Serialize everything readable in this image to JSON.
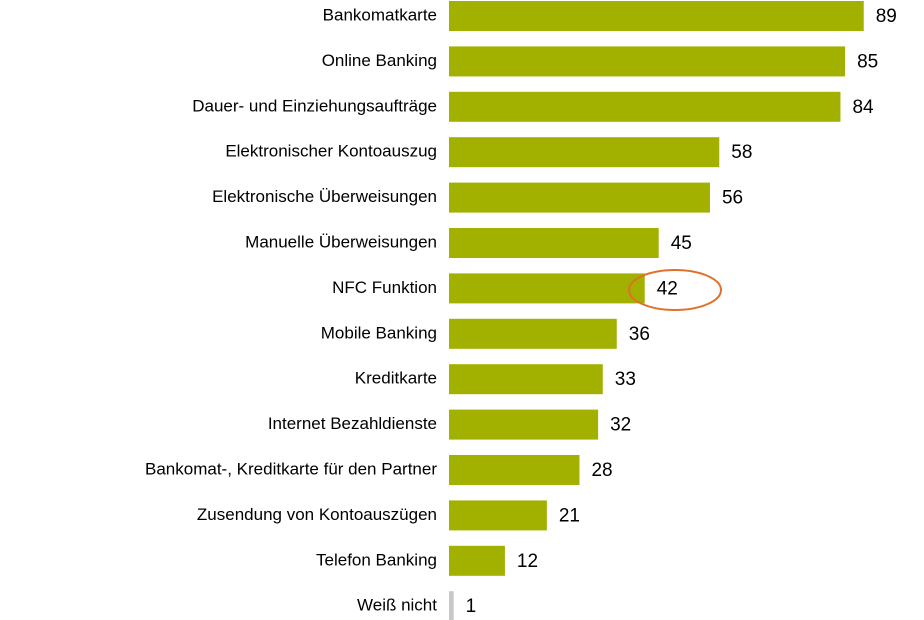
{
  "chart_data": {
    "type": "hbar",
    "categories": [
      "Bankomatkarte",
      "Online Banking",
      "Dauer- und Einziehungsaufträge",
      "Elektronischer Kontoauszug",
      "Elektronische Überweisungen",
      "Manuelle Überweisungen",
      "NFC Funktion",
      "Mobile Banking",
      "Kreditkarte",
      "Internet Bezahldienste",
      "Bankomat-, Kreditkarte für den Partner",
      "Zusendung von Kontoauszügen",
      "Telefon Banking",
      "Weiß nicht"
    ],
    "values": [
      89,
      85,
      84,
      58,
      56,
      45,
      42,
      36,
      33,
      32,
      28,
      21,
      12,
      1
    ],
    "colors": [
      "#a2b100",
      "#a2b100",
      "#a2b100",
      "#a2b100",
      "#a2b100",
      "#a2b100",
      "#a2b100",
      "#a2b100",
      "#a2b100",
      "#a2b100",
      "#a2b100",
      "#a2b100",
      "#a2b100",
      "#c8c8c8"
    ],
    "xlim": [
      0,
      100
    ],
    "grid": false
  }
}
